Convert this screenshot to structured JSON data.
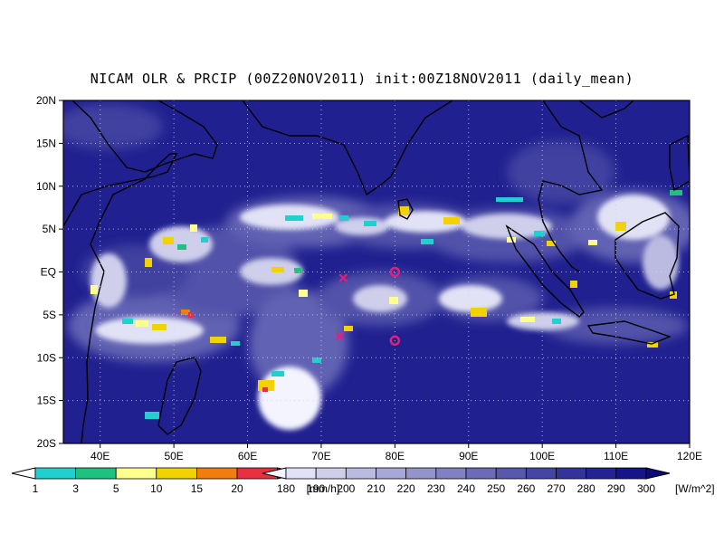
{
  "title": "NICAM OLR & PRCIP (00Z20NOV2011) init:00Z18NOV2011 (daily_mean)",
  "map": {
    "lat_range": [
      -20,
      20
    ],
    "lon_range": [
      35,
      120
    ],
    "lat_labels": [
      "20N",
      "15N",
      "10N",
      "5N",
      "EQ",
      "5S",
      "10S",
      "15S",
      "20S"
    ],
    "lat_values": [
      20,
      15,
      10,
      5,
      0,
      -5,
      -10,
      -15,
      -20
    ],
    "lon_labels": [
      "40E",
      "50E",
      "60E",
      "70E",
      "80E",
      "90E",
      "100E",
      "110E",
      "120E"
    ],
    "lon_values": [
      40,
      50,
      60,
      70,
      80,
      90,
      100,
      110,
      120
    ],
    "grid": "dotted",
    "background_color": "#202090",
    "markers": [
      {
        "type": "x",
        "lon": 73,
        "lat": -0.7,
        "color": "#e0207a"
      },
      {
        "type": "x",
        "lon": 72.5,
        "lat": -7.5,
        "color": "#e0207a"
      },
      {
        "type": "o",
        "lon": 80,
        "lat": 0,
        "color": "#e0207a"
      },
      {
        "type": "o",
        "lon": 80,
        "lat": -8,
        "color": "#e0207a"
      }
    ]
  },
  "precip_colorbar": {
    "values": [
      "1",
      "3",
      "5",
      "10",
      "15",
      "20"
    ],
    "unit": "[mm/h]",
    "colors": [
      "#22cfcf",
      "#20c080",
      "#ffff90",
      "#f2d200",
      "#f07d10",
      "#e83040"
    ]
  },
  "olr_colorbar": {
    "values": [
      "180",
      "190",
      "200",
      "210",
      "220",
      "230",
      "240",
      "250",
      "260",
      "270",
      "280",
      "290",
      "300"
    ],
    "unit": "[W/m^2]",
    "colors": [
      "#f4f4ff",
      "#e2e2f6",
      "#cfcfec",
      "#bbbbe2",
      "#a8a8d8",
      "#9494cc",
      "#8080c2",
      "#6b6bb8",
      "#5858ad",
      "#4545a3",
      "#33339a",
      "#232392",
      "#151588",
      "#0b0b7a"
    ]
  }
}
